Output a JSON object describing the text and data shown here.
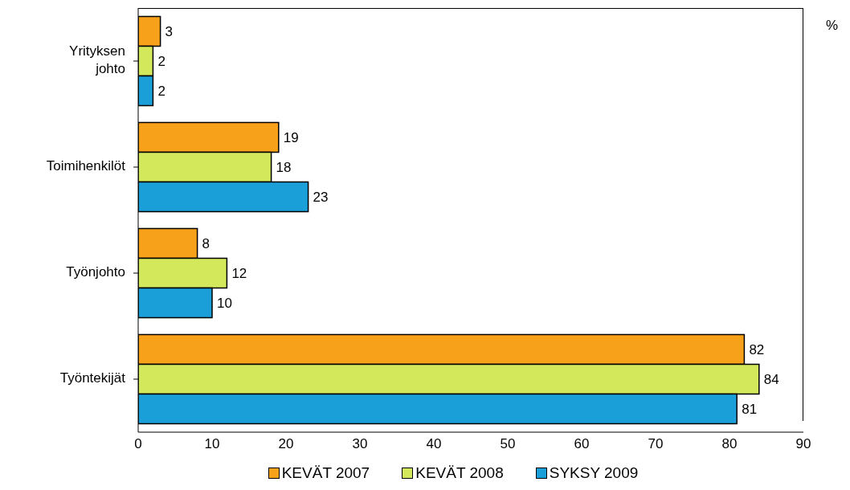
{
  "chart_data": {
    "type": "bar",
    "orientation": "horizontal",
    "categories": [
      "Yrityksen johto",
      "Toimihenkilöt",
      "Työnjohto",
      "Työntekijät"
    ],
    "series": [
      {
        "name": "KEVÄT 2007",
        "color": "#f7a11a",
        "values": [
          3,
          19,
          8,
          82
        ]
      },
      {
        "name": "KEVÄT 2008",
        "color": "#d4e85c",
        "values": [
          2,
          18,
          12,
          84
        ]
      },
      {
        "name": "SYKSY 2009",
        "color": "#1a9fd8",
        "values": [
          2,
          23,
          10,
          81
        ]
      }
    ],
    "xlim": [
      0,
      90
    ],
    "xticks": [
      0,
      10,
      20,
      30,
      40,
      50,
      60,
      70,
      80,
      90
    ],
    "grid": false,
    "legend": "bottom",
    "data_labels": true,
    "annotations": [
      "%"
    ]
  }
}
